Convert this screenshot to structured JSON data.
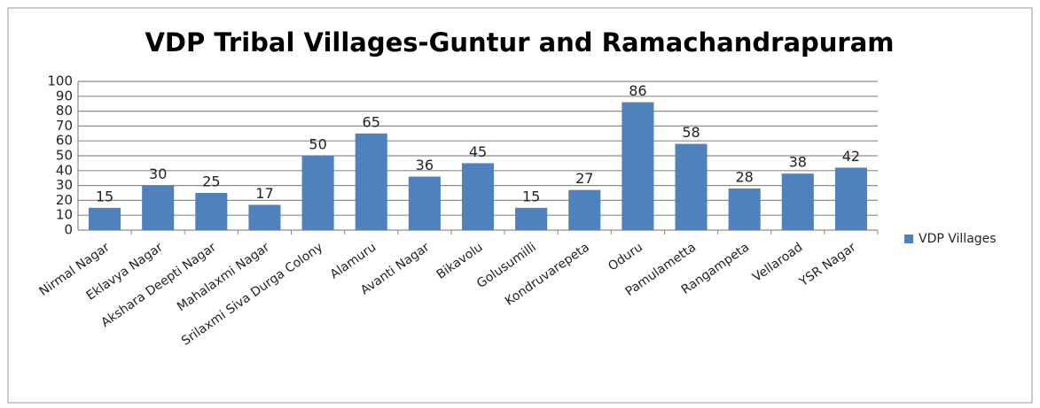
{
  "chart_data": {
    "type": "bar",
    "title": "VDP Tribal Villages-Guntur and Ramachandrapuram",
    "categories": [
      "Nirmal Nagar",
      "Eklavya Nagar",
      "Akshara Deepti Nagar",
      "Mahalaxmi Nagar",
      "Srilaxmi Siva Durga Colony",
      "Alamuru",
      "Avanti Nagar",
      "Bikavolu",
      "Golusumilli",
      "Kondruvarepeta",
      "Oduru",
      "Pamulametta",
      "Rangampeta",
      "Vellaroad",
      "YSR Nagar"
    ],
    "series": [
      {
        "name": "VDP Villages",
        "color": "#4f81bd",
        "values": [
          15,
          30,
          25,
          17,
          50,
          65,
          36,
          45,
          15,
          27,
          86,
          58,
          28,
          38,
          42
        ]
      }
    ],
    "ylim": [
      0,
      100
    ],
    "yticks": [
      0,
      10,
      20,
      30,
      40,
      50,
      60,
      70,
      80,
      90,
      100
    ],
    "grid": true,
    "legend": "right"
  }
}
